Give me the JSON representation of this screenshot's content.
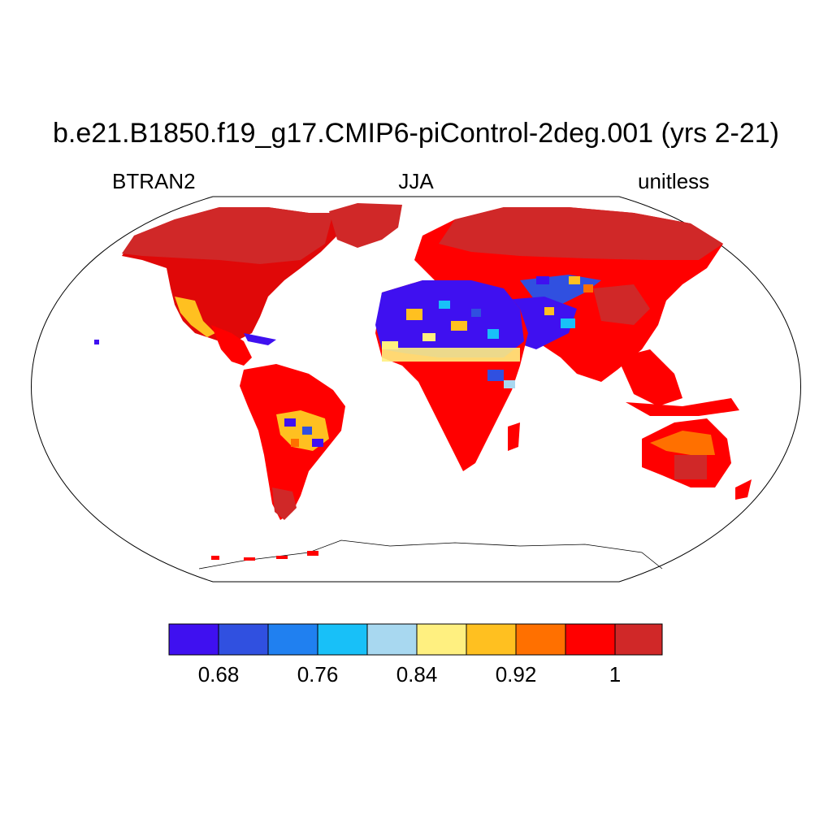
{
  "title": "b.e21.B1850.f19_g17.CMIP6-piControl-2deg.001 (yrs 2-21)",
  "left_label": "BTRAN2",
  "center_label": "JJA",
  "right_label": "unitless",
  "colorbar": {
    "colors": [
      "#3f10f0",
      "#3050e0",
      "#2080f0",
      "#18c0f8",
      "#a8d8f0",
      "#fff080",
      "#ffc020",
      "#ff7000",
      "#ff0000",
      "#d02828"
    ],
    "ticks": [
      "0.68",
      "0.76",
      "0.84",
      "0.92",
      "1"
    ]
  }
}
